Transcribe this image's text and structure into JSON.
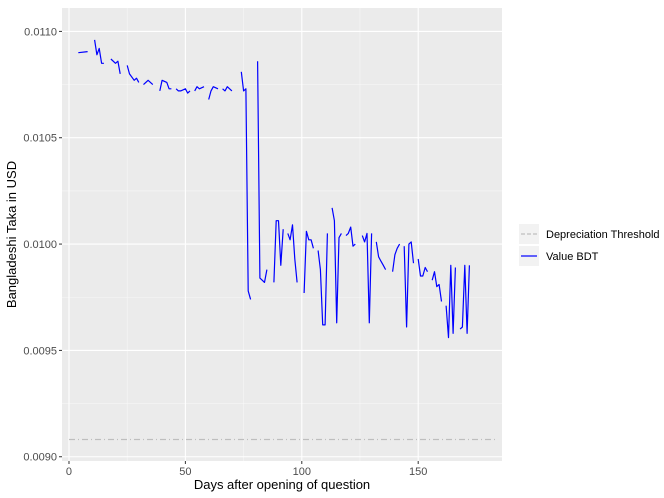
{
  "chart_data": {
    "type": "line",
    "title": "",
    "xlabel": "Days after opening of question",
    "ylabel": "Bangladeshi Taka in USD",
    "xlim": [
      -3,
      186
    ],
    "ylim": [
      0.00898,
      0.01111
    ],
    "x_ticks": [
      0,
      50,
      100,
      150
    ],
    "x_tick_labels": [
      "0",
      "50",
      "100",
      "150"
    ],
    "y_ticks": [
      0.009,
      0.0095,
      0.01,
      0.0105,
      0.011
    ],
    "y_tick_labels": [
      "0.0090",
      "0.0095",
      "0.0100",
      "0.0105",
      "0.0110"
    ],
    "grid": true,
    "legend_position": "right",
    "series": [
      {
        "name": "Depreciation Threshold",
        "color": "#bebebe",
        "style": "dashed",
        "segments": [
          [
            [
              0,
              0.009081
            ],
            [
              183,
              0.009081
            ]
          ]
        ]
      },
      {
        "name": "Value BDT",
        "color": "#0000ff",
        "style": "solid",
        "segments": [
          [
            [
              4,
              0.0109
            ],
            [
              8,
              0.010905
            ]
          ],
          [
            [
              11,
              0.01096
            ],
            [
              12,
              0.01089
            ],
            [
              13,
              0.01092
            ],
            [
              14,
              0.01085
            ],
            [
              15,
              0.01085
            ]
          ],
          [
            [
              18,
              0.01087
            ],
            [
              20,
              0.01085
            ],
            [
              21,
              0.01086
            ],
            [
              22,
              0.0108
            ]
          ],
          [
            [
              25,
              0.01084
            ],
            [
              26,
              0.0108
            ],
            [
              28,
              0.01077
            ],
            [
              29,
              0.01078
            ],
            [
              30,
              0.01076
            ]
          ],
          [
            [
              32,
              0.01075
            ],
            [
              34,
              0.01077
            ],
            [
              36,
              0.01075
            ]
          ],
          [
            [
              39,
              0.01072
            ],
            [
              40,
              0.01077
            ],
            [
              42,
              0.01076
            ],
            [
              43,
              0.01073
            ],
            [
              44,
              0.01073
            ]
          ],
          [
            [
              46,
              0.01073
            ],
            [
              47,
              0.01072
            ],
            [
              48,
              0.01072
            ],
            [
              50,
              0.01073
            ],
            [
              51,
              0.01071
            ],
            [
              52,
              0.01072
            ]
          ],
          [
            [
              54,
              0.01072
            ],
            [
              55,
              0.01074
            ],
            [
              56,
              0.01073
            ],
            [
              58,
              0.01074
            ]
          ],
          [
            [
              60,
              0.01068
            ],
            [
              61,
              0.01072
            ],
            [
              62,
              0.01074
            ],
            [
              64,
              0.01073
            ]
          ],
          [
            [
              66,
              0.01073
            ],
            [
              67,
              0.01072
            ],
            [
              68,
              0.01074
            ],
            [
              69,
              0.01073
            ],
            [
              70,
              0.01072
            ]
          ],
          [
            [
              74,
              0.01081
            ],
            [
              75,
              0.01072
            ],
            [
              76,
              0.01073
            ],
            [
              77,
              0.00978
            ],
            [
              78,
              0.00974
            ]
          ],
          [
            [
              81,
              0.01086
            ],
            [
              82,
              0.00984
            ],
            [
              83,
              0.00983
            ],
            [
              84,
              0.00982
            ],
            [
              85,
              0.00988
            ]
          ],
          [
            [
              88,
              0.00982
            ],
            [
              89,
              0.01011
            ],
            [
              90,
              0.01011
            ],
            [
              91,
              0.0099
            ],
            [
              92,
              0.01007
            ]
          ],
          [
            [
              94,
              0.01005
            ],
            [
              95,
              0.01002
            ],
            [
              96,
              0.01009
            ],
            [
              97,
              0.00993
            ],
            [
              98,
              0.00982
            ]
          ],
          [
            [
              101,
              0.00977
            ],
            [
              102,
              0.01006
            ],
            [
              103,
              0.01002
            ],
            [
              104,
              0.01002
            ],
            [
              105,
              0.00998
            ]
          ],
          [
            [
              107,
              0.00997
            ],
            [
              108,
              0.00988
            ],
            [
              109,
              0.00962
            ],
            [
              110,
              0.00962
            ],
            [
              111,
              0.01005
            ]
          ],
          [
            [
              113,
              0.01017
            ],
            [
              114,
              0.01011
            ],
            [
              115,
              0.00963
            ],
            [
              116,
              0.01003
            ],
            [
              117,
              0.01005
            ]
          ],
          [
            [
              119,
              0.01004
            ],
            [
              120,
              0.01005
            ],
            [
              121,
              0.01008
            ],
            [
              122,
              0.00999
            ],
            [
              123,
              0.01
            ]
          ],
          [
            [
              126,
              0.01004
            ],
            [
              127,
              0.01001
            ],
            [
              128,
              0.01005
            ],
            [
              129,
              0.00963
            ],
            [
              130,
              0.01005
            ]
          ],
          [
            [
              132,
              0.01001
            ],
            [
              133,
              0.00994
            ],
            [
              134,
              0.00992
            ],
            [
              135,
              0.0099
            ],
            [
              136,
              0.00988
            ]
          ],
          [
            [
              139,
              0.00987
            ],
            [
              140,
              0.00995
            ],
            [
              141,
              0.00998
            ],
            [
              142,
              0.01
            ]
          ],
          [
            [
              144,
              0.00999
            ],
            [
              145,
              0.00961
            ],
            [
              146,
              0.01
            ],
            [
              147,
              0.01001
            ],
            [
              148,
              0.00991
            ]
          ],
          [
            [
              150,
              0.00993
            ],
            [
              151,
              0.00985
            ],
            [
              152,
              0.00985
            ],
            [
              153,
              0.00989
            ],
            [
              154,
              0.00987
            ]
          ],
          [
            [
              156,
              0.00983
            ],
            [
              157,
              0.00987
            ],
            [
              158,
              0.0098
            ],
            [
              159,
              0.00981
            ],
            [
              160,
              0.00973
            ]
          ],
          [
            [
              162,
              0.00971
            ],
            [
              163,
              0.00956
            ],
            [
              164,
              0.0099
            ],
            [
              165,
              0.00958
            ],
            [
              166,
              0.00989
            ]
          ],
          [
            [
              168,
              0.0096
            ],
            [
              169,
              0.00961
            ],
            [
              170,
              0.0099
            ],
            [
              171,
              0.00958
            ],
            [
              172,
              0.0099
            ]
          ]
        ]
      }
    ]
  }
}
